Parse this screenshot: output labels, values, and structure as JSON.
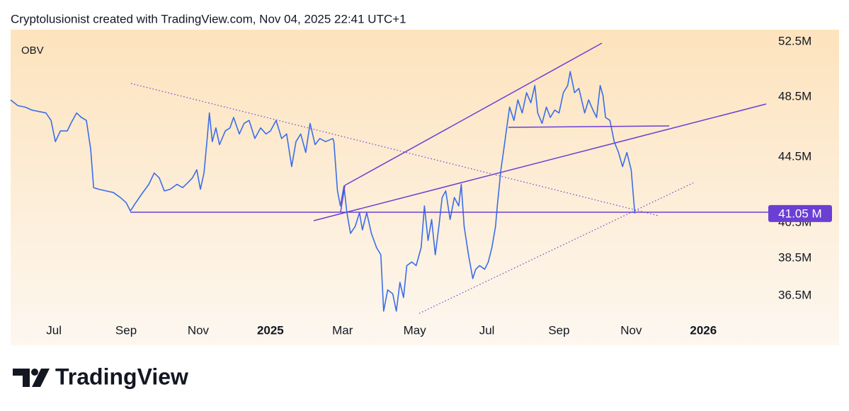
{
  "header": {
    "text": "Cryptolusionist created with TradingView.com, Nov 04, 2025 22:41 UTC+1"
  },
  "chart_data": {
    "type": "line",
    "title": "OBV",
    "log_scale": true,
    "color": "#3a6ee8",
    "accent": "#6b3fd4",
    "xlim": [
      -7.2,
      13.8
    ],
    "ylim": [
      34.0,
      53.4
    ],
    "xticks": [
      {
        "value": -6,
        "label": "Jul"
      },
      {
        "value": -4,
        "label": "Sep"
      },
      {
        "value": -2,
        "label": "Nov"
      },
      {
        "value": 0,
        "label": "2025"
      },
      {
        "value": 2,
        "label": "Mar"
      },
      {
        "value": 4,
        "label": "May"
      },
      {
        "value": 6,
        "label": "Jul"
      },
      {
        "value": 8,
        "label": "Sep"
      },
      {
        "value": 10,
        "label": "Nov"
      },
      {
        "value": 12,
        "label": "2026"
      }
    ],
    "yticks": [
      {
        "value": 36.5,
        "label": "36.5M"
      },
      {
        "value": 38.5,
        "label": "38.5M"
      },
      {
        "value": 40.5,
        "label": "40.5M"
      },
      {
        "value": 44.5,
        "label": "44.5M"
      },
      {
        "value": 48.5,
        "label": "48.5M"
      },
      {
        "value": 52.5,
        "label": "52.5M"
      }
    ],
    "x": [
      -7.2,
      -7.0,
      -6.8,
      -6.61,
      -6.41,
      -6.22,
      -6.08,
      -5.96,
      -5.82,
      -5.63,
      -5.53,
      -5.37,
      -5.24,
      -5.1,
      -4.98,
      -4.9,
      -4.75,
      -4.55,
      -4.35,
      -4.16,
      -4.0,
      -3.88,
      -3.76,
      -3.57,
      -3.37,
      -3.22,
      -3.08,
      -2.94,
      -2.78,
      -2.59,
      -2.43,
      -2.29,
      -2.16,
      -2.04,
      -1.94,
      -1.84,
      -1.76,
      -1.69,
      -1.61,
      -1.51,
      -1.41,
      -1.25,
      -1.12,
      -1.02,
      -0.86,
      -0.73,
      -0.59,
      -0.43,
      -0.27,
      -0.12,
      0.0,
      0.16,
      0.31,
      0.45,
      0.59,
      0.71,
      0.84,
      0.98,
      1.1,
      1.24,
      1.37,
      1.53,
      1.73,
      1.76,
      1.86,
      1.94,
      2.04,
      2.12,
      2.22,
      2.35,
      2.47,
      2.55,
      2.67,
      2.8,
      2.94,
      3.06,
      3.14,
      3.25,
      3.39,
      3.49,
      3.59,
      3.69,
      3.78,
      3.92,
      4.04,
      4.18,
      4.27,
      4.37,
      4.47,
      4.57,
      4.67,
      4.76,
      4.86,
      4.98,
      5.1,
      5.22,
      5.29,
      5.37,
      5.49,
      5.61,
      5.69,
      5.8,
      5.94,
      6.04,
      6.14,
      6.24,
      6.29,
      6.39,
      6.47,
      6.55,
      6.63,
      6.75,
      6.86,
      6.98,
      7.1,
      7.22,
      7.33,
      7.41,
      7.53,
      7.65,
      7.76,
      7.88,
      8.0,
      8.12,
      8.24,
      8.31,
      8.43,
      8.55,
      8.71,
      8.82,
      8.94,
      9.04,
      9.14,
      9.22,
      9.29,
      9.41,
      9.53,
      9.65,
      9.76,
      9.88,
      10.0,
      10.1
    ],
    "values": [
      48.3,
      47.9,
      47.8,
      47.6,
      47.5,
      47.4,
      46.9,
      45.5,
      46.2,
      46.2,
      46.7,
      47.4,
      47.1,
      46.9,
      45.0,
      42.6,
      42.5,
      42.4,
      42.3,
      42.0,
      41.7,
      41.2,
      41.6,
      42.2,
      42.8,
      43.5,
      43.2,
      42.4,
      42.5,
      42.8,
      42.6,
      42.9,
      43.2,
      43.7,
      42.5,
      43.5,
      45.5,
      47.4,
      45.5,
      46.4,
      45.3,
      46.2,
      46.4,
      47.1,
      46.0,
      46.7,
      46.9,
      45.7,
      46.4,
      46.0,
      46.2,
      46.9,
      45.7,
      46.0,
      43.9,
      45.5,
      46.0,
      44.8,
      46.7,
      45.3,
      45.7,
      45.5,
      45.7,
      45.5,
      42.4,
      41.5,
      42.7,
      41.1,
      39.9,
      40.3,
      41.1,
      40.1,
      41.1,
      39.9,
      39.1,
      38.7,
      35.7,
      36.8,
      36.6,
      35.7,
      37.2,
      36.4,
      38.1,
      38.3,
      38.1,
      39.1,
      41.5,
      39.5,
      40.7,
      38.7,
      40.3,
      42.0,
      42.4,
      40.7,
      42.0,
      41.5,
      42.8,
      40.3,
      38.7,
      37.4,
      37.9,
      38.1,
      37.9,
      38.3,
      39.1,
      40.3,
      41.5,
      43.7,
      45.0,
      46.4,
      47.8,
      46.9,
      48.3,
      47.4,
      48.8,
      48.1,
      49.3,
      47.4,
      46.7,
      47.8,
      47.1,
      47.6,
      47.4,
      48.8,
      49.3,
      50.3,
      48.8,
      49.1,
      47.4,
      48.3,
      47.6,
      47.1,
      49.3,
      48.6,
      47.1,
      46.9,
      45.5,
      44.8,
      43.9,
      44.8,
      43.7,
      41.05
    ],
    "value_labels": [
      null,
      null,
      null,
      null,
      null,
      null,
      null,
      null,
      null,
      null,
      null,
      null,
      null,
      null,
      null,
      null,
      null,
      null,
      null,
      null,
      null,
      null,
      null,
      null,
      null,
      null,
      null,
      null,
      null,
      null,
      null,
      null,
      null,
      null,
      null,
      null,
      null,
      null,
      null,
      null,
      null,
      null,
      null,
      null,
      null,
      null,
      null,
      null,
      null,
      null,
      null,
      null,
      null,
      null,
      null,
      null,
      null,
      null,
      null,
      null,
      null,
      null,
      null,
      null,
      null,
      null,
      null,
      null,
      null,
      null,
      null,
      null,
      null,
      null,
      null,
      null,
      null,
      null,
      null,
      null,
      null,
      null,
      null,
      null,
      null,
      null,
      null,
      null,
      null,
      null,
      null,
      null,
      null,
      null,
      null,
      null,
      null,
      null,
      null,
      null,
      null,
      null,
      null,
      null,
      null,
      null,
      null,
      null,
      null,
      null,
      null,
      null,
      null,
      null,
      null,
      null,
      null,
      null,
      null,
      null,
      null,
      null,
      null,
      null,
      null,
      null,
      null,
      null,
      null,
      null,
      null,
      null,
      null,
      null,
      null,
      null,
      null,
      null,
      null,
      null,
      null,
      "41.05 M"
    ]
  },
  "footer": {
    "brand": "TradingView"
  }
}
